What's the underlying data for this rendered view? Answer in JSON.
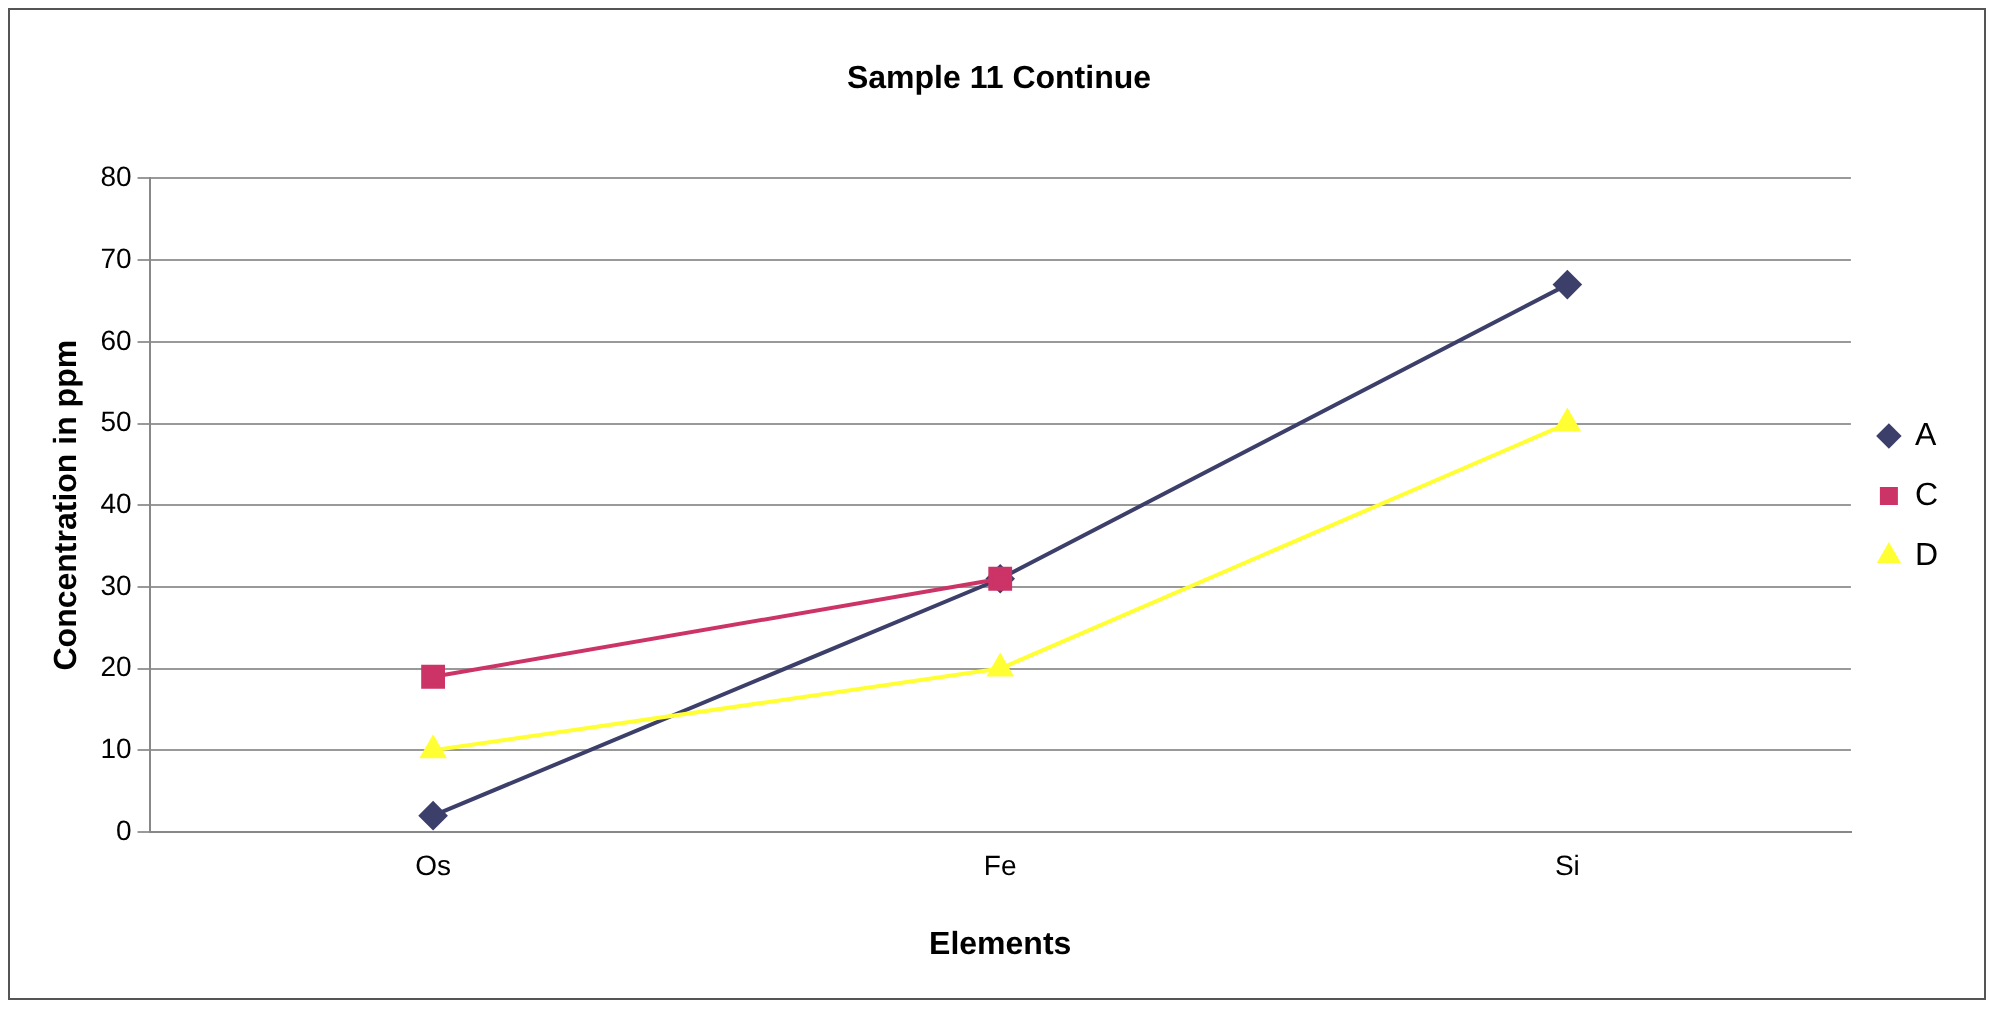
{
  "chart_data": {
    "type": "line",
    "title": "Sample 11 Continue",
    "xlabel": "Elements",
    "ylabel": "Concentration in ppm",
    "categories": [
      "Os",
      "Fe",
      "Si"
    ],
    "series": [
      {
        "name": "A",
        "color": "#3d3f6b",
        "marker": "diamond",
        "values": [
          2,
          31,
          67
        ]
      },
      {
        "name": "C",
        "color": "#cc3366",
        "marker": "square",
        "values": [
          19,
          31,
          null
        ]
      },
      {
        "name": "D",
        "color": "#ffff33",
        "marker": "triangle",
        "values": [
          10,
          20,
          50
        ]
      }
    ],
    "ylim": [
      0,
      80
    ],
    "yticks": [
      0,
      10,
      20,
      30,
      40,
      50,
      60,
      70,
      80
    ],
    "grid": "y",
    "legend": "right"
  }
}
